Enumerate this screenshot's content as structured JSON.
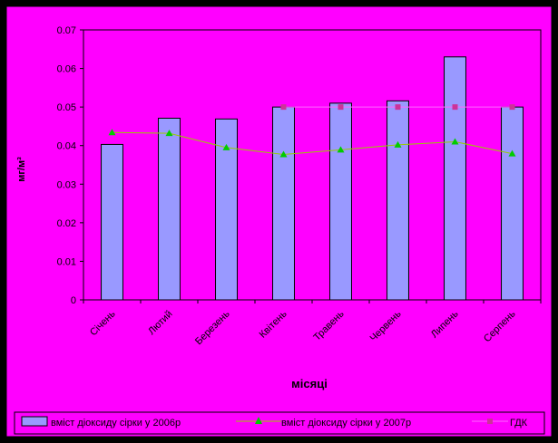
{
  "chart_data": {
    "type": "bar",
    "title": "",
    "xlabel": "місяці",
    "ylabel": "мг/м³",
    "ylim": [
      0,
      0.07
    ],
    "yticks": [
      "0",
      "0.01",
      "0.02",
      "0.03",
      "0.04",
      "0.05",
      "0.06",
      "0.07"
    ],
    "ytick_values": [
      0,
      0.01,
      0.02,
      0.03,
      0.04,
      0.05,
      0.06,
      0.07
    ],
    "categories": [
      "Січень",
      "Лютий",
      "Березень",
      "Квітень",
      "Травень",
      "Червень",
      "Липень",
      "Серпень"
    ],
    "grid": false,
    "legend_position": "bottom",
    "series": [
      {
        "name": "вміст діоксиду сірки у 2006р",
        "kind": "bar",
        "color": "#9999FF",
        "values": [
          0.0403,
          0.0471,
          0.0469,
          0.05,
          0.051,
          0.0516,
          0.063,
          0.05
        ]
      },
      {
        "name": "вміст діоксиду сірки у 2007р",
        "kind": "line",
        "color": "#99CC00",
        "marker_color": "#00CC00",
        "values": [
          0.0434,
          0.0432,
          0.0395,
          0.0377,
          0.0389,
          0.0402,
          0.041,
          0.0379
        ]
      },
      {
        "name": "ГДК",
        "kind": "line",
        "color": "#FF66FF",
        "marker_color": "#CC3399",
        "values": [
          null,
          null,
          null,
          0.05,
          0.05,
          0.05,
          0.05,
          0.05
        ]
      }
    ]
  },
  "colors": {
    "frame_background": "#FF00FF",
    "plot_background": "#FF00FF",
    "outer_background": "#000000"
  }
}
